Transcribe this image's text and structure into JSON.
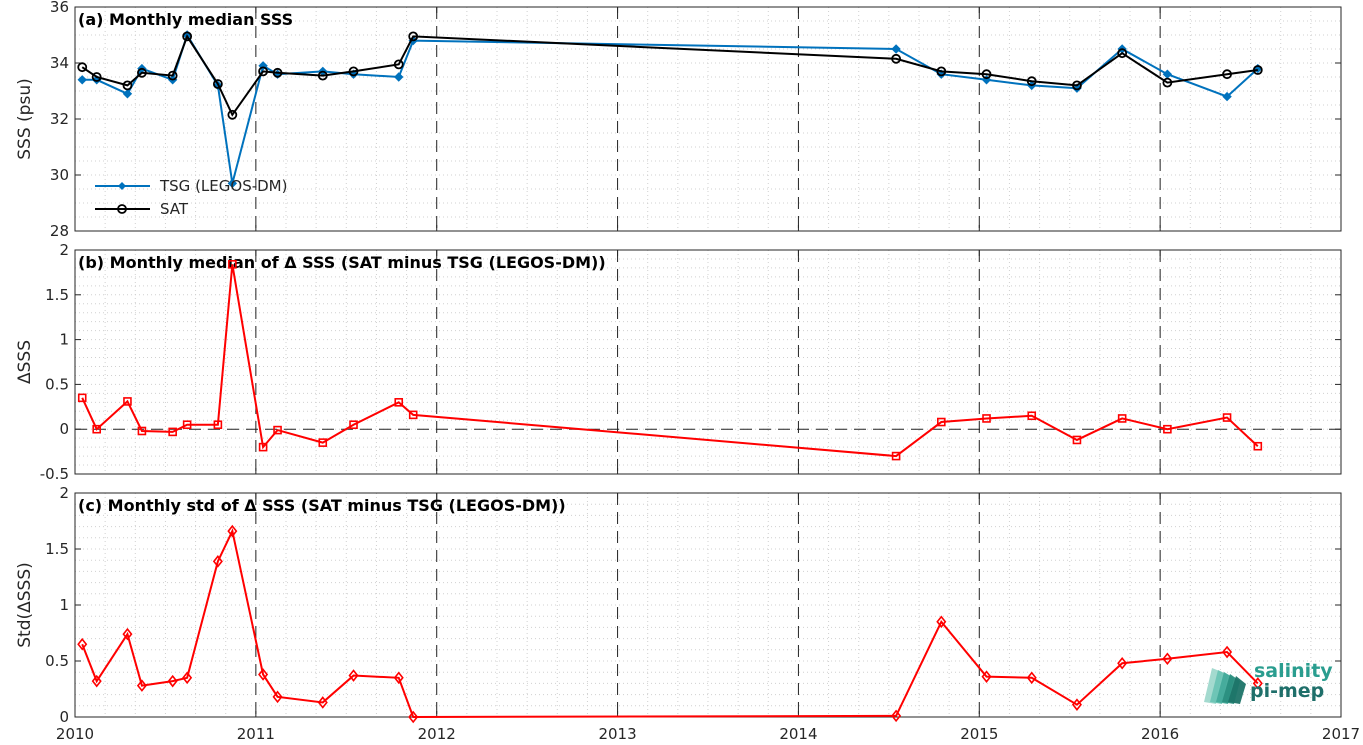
{
  "chart_data": [
    {
      "type": "line",
      "title": "(a) Monthly median SSS",
      "xlabel": "",
      "ylabel": "SSS (psu)",
      "xlim": [
        2010,
        2017
      ],
      "ylim": [
        28,
        36
      ],
      "x_ticks": [
        "2010",
        "2011",
        "2012",
        "2013",
        "2014",
        "2015",
        "2016",
        "2017"
      ],
      "y_ticks": [
        "28",
        "30",
        "32",
        "34",
        "36"
      ],
      "grid": "dotted minor grid, dashed vertical lines at each year",
      "legend_position": "lower-left",
      "series": [
        {
          "name": "TSG (LEGOS-DM)",
          "color": "#0072BD",
          "marker": "filled-diamond",
          "x": [
            2010.04,
            2010.12,
            2010.29,
            2010.37,
            2010.54,
            2010.62,
            2010.79,
            2010.87,
            2011.04,
            2011.12,
            2011.37,
            2011.54,
            2011.79,
            2011.87,
            2014.54,
            2014.79,
            2015.04,
            2015.29,
            2015.54,
            2015.79,
            2016.04,
            2016.37,
            2016.54
          ],
          "values": [
            33.4,
            33.4,
            32.9,
            33.8,
            33.4,
            35.0,
            33.2,
            29.7,
            33.9,
            33.6,
            33.7,
            33.6,
            33.5,
            34.8,
            34.5,
            33.6,
            33.4,
            33.2,
            33.1,
            34.5,
            33.6,
            32.8,
            33.8
          ]
        },
        {
          "name": "SAT",
          "color": "#000000",
          "marker": "open-circle",
          "x": [
            2010.04,
            2010.12,
            2010.29,
            2010.37,
            2010.54,
            2010.62,
            2010.79,
            2010.87,
            2011.04,
            2011.12,
            2011.37,
            2011.54,
            2011.79,
            2011.87,
            2014.54,
            2014.79,
            2015.04,
            2015.29,
            2015.54,
            2015.79,
            2016.04,
            2016.37,
            2016.54
          ],
          "values": [
            33.85,
            33.5,
            33.2,
            33.65,
            33.55,
            34.95,
            33.25,
            32.15,
            33.7,
            33.65,
            33.55,
            33.7,
            33.95,
            34.95,
            34.15,
            33.7,
            33.6,
            33.35,
            33.2,
            34.35,
            33.3,
            33.6,
            33.75
          ]
        }
      ]
    },
    {
      "type": "line",
      "title": "(b) Monthly median of Δ SSS (SAT minus TSG (LEGOS-DM))",
      "xlabel": "",
      "ylabel": "ΔSSS",
      "xlim": [
        2010,
        2017
      ],
      "ylim": [
        -0.5,
        2
      ],
      "x_ticks": [
        "2010",
        "2011",
        "2012",
        "2013",
        "2014",
        "2015",
        "2016",
        "2017"
      ],
      "y_ticks": [
        "-0.5",
        "0",
        "0.5",
        "1",
        "1.5",
        "2"
      ],
      "zero_line": true,
      "series": [
        {
          "name": "",
          "color": "#FF0000",
          "marker": "open-square",
          "x": [
            2010.04,
            2010.12,
            2010.29,
            2010.37,
            2010.54,
            2010.62,
            2010.79,
            2010.87,
            2011.04,
            2011.12,
            2011.37,
            2011.54,
            2011.79,
            2011.87,
            2014.54,
            2014.79,
            2015.04,
            2015.29,
            2015.54,
            2015.79,
            2016.04,
            2016.37,
            2016.54
          ],
          "values": [
            0.35,
            0.0,
            0.31,
            -0.02,
            -0.03,
            0.05,
            0.05,
            1.84,
            -0.2,
            -0.01,
            -0.15,
            0.05,
            0.3,
            0.16,
            -0.3,
            0.08,
            0.12,
            0.15,
            -0.12,
            0.12,
            0.0,
            0.13,
            -0.19
          ]
        }
      ]
    },
    {
      "type": "line",
      "title": "(c) Monthly std of Δ SSS (SAT minus TSG (LEGOS-DM))",
      "xlabel": "",
      "ylabel": "Std(ΔSSS)",
      "xlim": [
        2010,
        2017
      ],
      "ylim": [
        0,
        2
      ],
      "x_ticks": [
        "2010",
        "2011",
        "2012",
        "2013",
        "2014",
        "2015",
        "2016",
        "2017"
      ],
      "y_ticks": [
        "0",
        "0.5",
        "1",
        "1.5",
        "2"
      ],
      "series": [
        {
          "name": "",
          "color": "#FF0000",
          "marker": "open-diamond",
          "x": [
            2010.04,
            2010.12,
            2010.29,
            2010.37,
            2010.54,
            2010.62,
            2010.79,
            2010.87,
            2011.04,
            2011.12,
            2011.37,
            2011.54,
            2011.79,
            2011.87,
            2014.54,
            2014.79,
            2015.04,
            2015.29,
            2015.54,
            2015.79,
            2016.04,
            2016.37,
            2016.54
          ],
          "values": [
            0.65,
            0.32,
            0.74,
            0.28,
            0.32,
            0.35,
            1.39,
            1.66,
            0.38,
            0.18,
            0.13,
            0.37,
            0.35,
            0.0,
            0.01,
            0.85,
            0.36,
            0.35,
            0.11,
            0.48,
            0.52,
            0.58,
            0.3
          ]
        }
      ]
    }
  ],
  "logo": {
    "line1": "salinity",
    "line2": "pi-mep"
  }
}
